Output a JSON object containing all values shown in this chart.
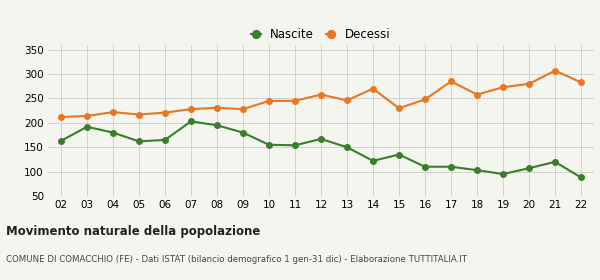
{
  "years": [
    "02",
    "03",
    "04",
    "05",
    "06",
    "07",
    "08",
    "09",
    "10",
    "11",
    "12",
    "13",
    "14",
    "15",
    "16",
    "17",
    "18",
    "19",
    "20",
    "21",
    "22"
  ],
  "nascite": [
    163,
    192,
    180,
    162,
    165,
    203,
    195,
    180,
    155,
    154,
    167,
    150,
    122,
    135,
    110,
    110,
    103,
    95,
    107,
    120,
    88
  ],
  "decessi": [
    212,
    214,
    222,
    217,
    221,
    228,
    231,
    228,
    245,
    245,
    258,
    246,
    270,
    230,
    248,
    285,
    258,
    273,
    280,
    307,
    283
  ],
  "nascite_color": "#3a7d2c",
  "decessi_color": "#e87722",
  "bg_color": "#f5f5f0",
  "grid_color": "#cccccc",
  "ylim": [
    50,
    360
  ],
  "yticks": [
    50,
    100,
    150,
    200,
    250,
    300,
    350
  ],
  "title": "Movimento naturale della popolazione",
  "subtitle": "COMUNE DI COMACCHIO (FE) - Dati ISTAT (bilancio demografico 1 gen-31 dic) - Elaborazione TUTTITALIA.IT",
  "legend_nascite": "Nascite",
  "legend_decessi": "Decessi",
  "marker_size": 4,
  "line_width": 1.5
}
